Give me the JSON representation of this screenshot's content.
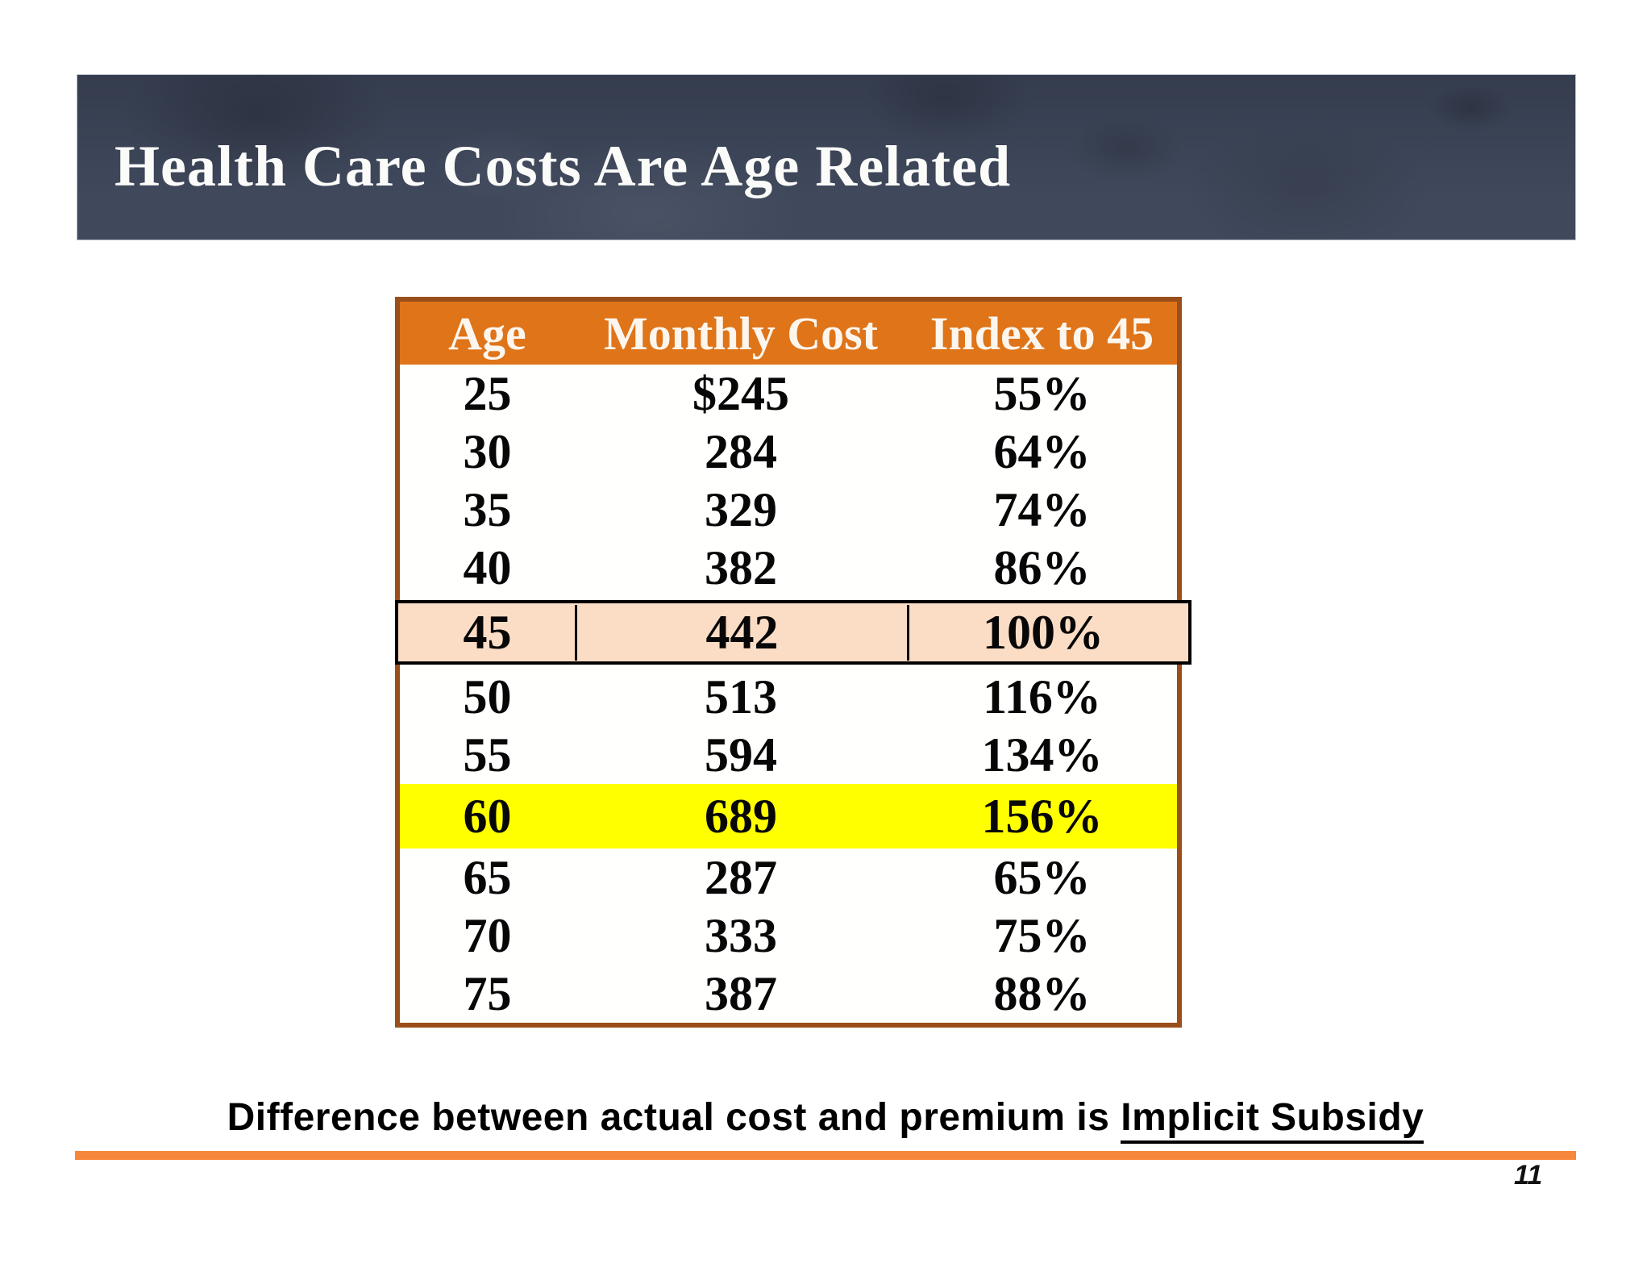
{
  "slide": {
    "title": "Health Care Costs Are Age Related",
    "page_number": "11",
    "caption": {
      "prefix": "Difference between actual cost and premium is ",
      "underlined": "Implicit Subsidy"
    }
  },
  "table": {
    "headers": [
      "Age",
      "Monthly Cost",
      "Index to 45"
    ],
    "rows": [
      {
        "cells": [
          "25",
          "$245",
          "55%"
        ],
        "highlight": "none"
      },
      {
        "cells": [
          "30",
          "284",
          "64%"
        ],
        "highlight": "none"
      },
      {
        "cells": [
          "35",
          "329",
          "74%"
        ],
        "highlight": "none"
      },
      {
        "cells": [
          "40",
          "382",
          "86%"
        ],
        "highlight": "none"
      },
      {
        "cells": [
          "45",
          "442",
          "100%"
        ],
        "highlight": "peach"
      },
      {
        "cells": [
          "50",
          "513",
          "116%"
        ],
        "highlight": "none"
      },
      {
        "cells": [
          "55",
          "594",
          "134%"
        ],
        "highlight": "none"
      },
      {
        "cells": [
          "60",
          "689",
          "156%"
        ],
        "highlight": "yellow"
      },
      {
        "cells": [
          "65",
          "287",
          "65%"
        ],
        "highlight": "none"
      },
      {
        "cells": [
          "70",
          "333",
          "75%"
        ],
        "highlight": "none"
      },
      {
        "cells": [
          "75",
          "387",
          "88%"
        ],
        "highlight": "none"
      }
    ]
  },
  "chart_data": {
    "type": "table",
    "title": "Health Care Costs Are Age Related",
    "categories": [
      25,
      30,
      35,
      40,
      45,
      50,
      55,
      60,
      65,
      70,
      75
    ],
    "series": [
      {
        "name": "Monthly Cost",
        "values": [
          245,
          284,
          329,
          382,
          442,
          513,
          594,
          689,
          287,
          333,
          387
        ]
      },
      {
        "name": "Index to 45 (%)",
        "values": [
          55,
          64,
          74,
          86,
          100,
          116,
          134,
          156,
          65,
          75,
          88
        ]
      }
    ],
    "annotations": [
      "Row age 45 highlighted peach (baseline 100%)",
      "Row age 60 highlighted yellow"
    ]
  },
  "colors": {
    "banner_navy": "#3A4357",
    "header_orange": "#DF7419",
    "table_border_brown": "#9A4E1A",
    "row_highlight_peach": "#FBDCC5",
    "row_highlight_yellow": "#FFFF00",
    "divider_orange": "#F6873B"
  }
}
